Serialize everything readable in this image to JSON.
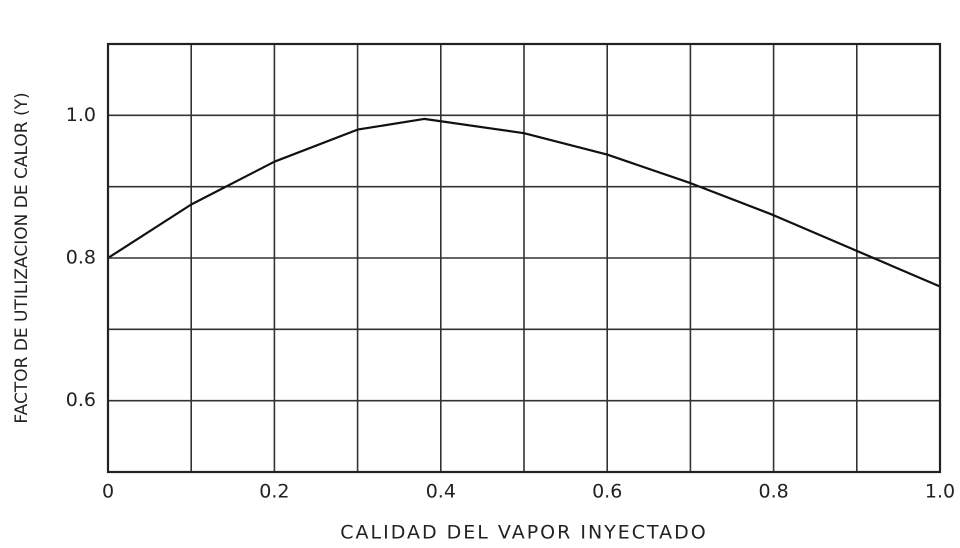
{
  "chart_data": {
    "type": "line",
    "xlabel": "CALIDAD DEL VAPOR INYECTADO",
    "ylabel": "FACTOR DE UTILIZACION DE CALOR (Y)",
    "x": [
      0,
      0.1,
      0.2,
      0.3,
      0.38,
      0.5,
      0.6,
      0.7,
      0.8,
      0.9,
      1.0
    ],
    "series": [
      {
        "color": "#111111",
        "values": [
          0.8,
          0.875,
          0.935,
          0.98,
          0.995,
          0.975,
          0.945,
          0.905,
          0.86,
          0.81,
          0.76
        ]
      }
    ],
    "xlim": [
      0,
      1
    ],
    "ylim": [
      0.5,
      1.1
    ],
    "xticks": [
      0,
      0.2,
      0.4,
      0.6,
      0.8,
      {
        "value": 1,
        "label": "1.0"
      }
    ],
    "yticks": [
      0.6,
      0.8,
      {
        "value": 1,
        "label": "1.0"
      }
    ],
    "x_gridlines": [
      0,
      0.1,
      0.2,
      0.3,
      0.4,
      0.5,
      0.6,
      0.7,
      0.8,
      0.9,
      1
    ],
    "y_gridlines": [
      0.5,
      0.6,
      0.7,
      0.8,
      0.9,
      1,
      1.1
    ],
    "grid": true
  }
}
